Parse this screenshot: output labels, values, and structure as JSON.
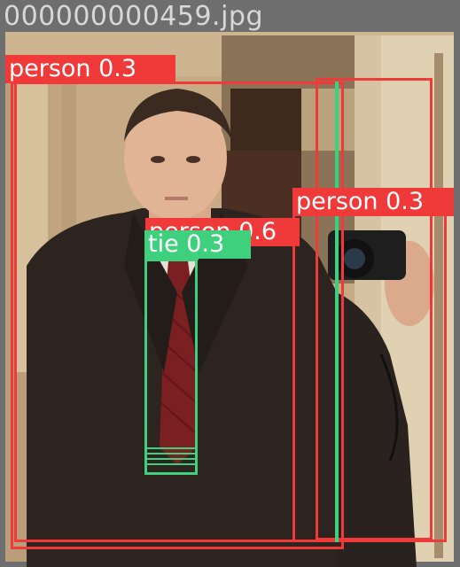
{
  "filename": "000000000459.jpg",
  "colors": {
    "person_box": "#f03a3a",
    "tie_box": "#3fd07d",
    "filename_text": "#d8d8d8",
    "background": "#6e6e6e"
  },
  "detections": {
    "person_left": {
      "label": "person 0.3",
      "class": "person",
      "confidence": 0.3
    },
    "person_right": {
      "label": "person 0.3",
      "class": "person",
      "confidence": 0.3
    },
    "person_center": {
      "label": "person 0.6",
      "class": "person",
      "confidence": 0.6
    },
    "tie": {
      "label": "tie 0.3",
      "class": "tie",
      "confidence": 0.3
    }
  }
}
